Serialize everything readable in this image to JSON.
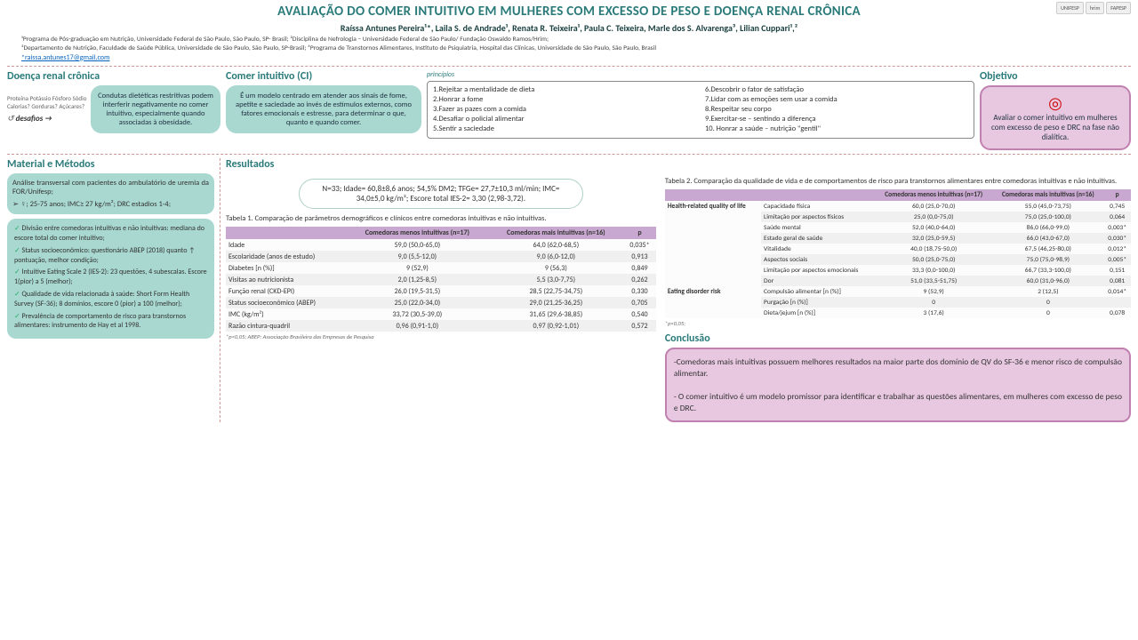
{
  "title": "AVALIAÇÃO DO COMER INTUITIVO EM MULHERES COM EXCESSO DE PESO E DOENÇA RENAL CRÔNICA",
  "authors": "Raíssa Antunes Pereira¹*, Laila S. de Andrade¹, Renata R. Teixeira¹, Paula C. Teixeira, Marle dos S. Alvarenga³, Lilian Cuppari¹,²",
  "affil1": "¹Programa de Pós-graduação em Nutrição, Universidade Federal de São Paulo, São Paulo, SP- Brasil; ²Disciplina de Nefrologia – Universidade Federal de São Paulo/ Fundação Oswaldo Ramos/Hrim;",
  "affil2": "³Departamento de Nutrição, Faculdade de Saúde Pública, Universidade de São Paulo, São Paulo, SP-Brasil; ⁴Programa de Transtornos Alimentares, Instituto de Psiquiatria, Hospital das Clínicas, Universidade de São Paulo, São Paulo, Brasil",
  "email": "*raissa.antunes17@gmail.com",
  "logos": [
    "UNIFESP",
    "hrim",
    "FAPESP"
  ],
  "drc": {
    "title": "Doença renal crônica",
    "words": "Proteína Potássio Fósforo Sódio Calorias? Gorduras? Açúcares?",
    "desafios": "desafios →",
    "box": "Condutas dietéticas restritivas podem interferir negativamente no comer intuitivo, especialmente quando associadas à obesidade."
  },
  "ci": {
    "title": "Comer intuitivo (CI)",
    "box": "É um modelo centrado em atender aos sinais de fome, apetite e saciedade ao invés de estímulos externos, como fatores emocionais e estresse, para determinar o que, quanto e quando comer.",
    "princLabel": "princípios",
    "princ": [
      "1.Rejeitar a mentalidade de dieta",
      "2.Honrar a fome",
      "3.Fazer as pazes com a comida",
      "4.Desafiar o policial alimentar",
      "5.Sentir a saciedade",
      "6.Descobrir o fator de satisfação",
      "7.Lidar com as emoções sem usar a comida",
      "8.Respeitar seu corpo",
      "9.Exercitar-se – sentindo a diferença",
      "10. Honrar a saúde – nutrição \"gentil\""
    ]
  },
  "obj": {
    "title": "Objetivo",
    "box": "Avaliar o comer intuitivo em mulheres com excesso de peso e DRC na fase não dialítica."
  },
  "methods": {
    "title": "Material e Métodos",
    "box1": "Análise transversal com pacientes do ambulatório de uremia da FOR/Unifesp;",
    "box1b": "➢ ♀; 25-75 anos; IMC≥ 27 kg/m²; DRC estadios 1-4;",
    "items": [
      "Divisão entre comedoras intuitivas e não intuitivas: mediana do escore total do comer intuitivo;",
      "Status socioeconômico: questionário ABEP (2018) quanto ↑ pontuação, melhor condição;",
      "Intuitive Eating Scale 2 (IES-2): 23 questões, 4 subescalas. Escore 1(pior) a 5 (melhor);",
      "Qualidade de vida relacionada à saúde: Short Form Health Survey (SF-36); 8 domínios, escore 0 (pior) a 100 (melhor);",
      "Prevalência de comportamento de risco para transtornos alimentares: instrumento de Hay et al 1998."
    ]
  },
  "results": {
    "title": "Resultados",
    "summary": "N=33; Idade= 60,8±8,6 anos; 54,5% DM2; TFGe= 27,7±10,3 ml/min; IMC= 34,0±5,0 kg/m²; Escore total IES-2= 3,30 (2,98-3,72).",
    "tbl1cap": "Tabela 1. Comparação de parâmetros demográficos e clínicos entre comedoras intuitivas e não intuitivas.",
    "cols": [
      "",
      "Comedoras menos intuitivas (n=17)",
      "Comedoras mais intuitivas (n=16)",
      "p"
    ],
    "tbl1": [
      [
        "Idade",
        "59,0 (50,0-65,0)",
        "64,0 (62,0-68,5)",
        "0,035*"
      ],
      [
        "Escolaridade (anos de estudo)",
        "9,0 (5,5-12,0)",
        "9,0 (6,0-12,0)",
        "0,913"
      ],
      [
        "Diabetes [n (%)]",
        "9 (52,9)",
        "9 (56,3)",
        "0,849"
      ],
      [
        "Visitas ao nutricionista",
        "2,0 (1,25-8,5)",
        "5,5 (3,0-7,75)",
        "0,262"
      ],
      [
        "Função renal (CKD-EPI)",
        "26,0 (19,5-31,5)",
        "28,5 (22,75-34,75)",
        "0,330"
      ],
      [
        "Status socioeconômico (ABEP)",
        "25,0 (22,0-34,0)",
        "29,0 (21,25-36,25)",
        "0,705"
      ],
      [
        "IMC (kg/m²)",
        "33,72 (30,5-39,0)",
        "31,65 (29,6-38,85)",
        "0,540"
      ],
      [
        "Razão cintura-quadril",
        "0,96 (0,91-1,0)",
        "0,97 (0,92-1,01)",
        "0,572"
      ]
    ],
    "tbl1foot": "*p<0,05; ABEP: Associação Brasileira das Empresas de Pesquisa",
    "tbl2cap": "Tabela 2. Comparação da qualidade de vida e de comportamentos de risco para transtornos alimentares entre comedoras intuitivas e não intuitivas.",
    "tbl2g1": "Health-related quality of life",
    "tbl2a": [
      [
        "Capacidade física",
        "60,0 (25,0-70,0)",
        "55,0 (45,0-73,75)",
        "0,745"
      ],
      [
        "Limitação por aspectos físicos",
        "25,0 (0,0-75,0)",
        "75,0 (25,0-100,0)",
        "0,064"
      ],
      [
        "Saúde mental",
        "52,0 (40,0-64,0)",
        "86,0 (66,0-99,0)",
        "0,003*"
      ],
      [
        "Estado geral de saúde",
        "32,0 (25,0-59,5)",
        "66,0 (43,0-67,0)",
        "0,030*"
      ],
      [
        "Vitalidade",
        "40,0 (18,75-50,0)",
        "67,5 (46,25-80,0)",
        "0,012*"
      ],
      [
        "Aspectos sociais",
        "50,0 (25,0-75,0)",
        "75,0 (75,0-98,9)",
        "0,005*"
      ],
      [
        "Limitação por aspectos emocionais",
        "33,3 (0,0-100,0)",
        "66,7 (33,3-100,0)",
        "0,151"
      ],
      [
        "Dor",
        "51,0 (33,5-51,75)",
        "60,0 (31,0-96,0)",
        "0,081"
      ]
    ],
    "tbl2g2": "Eating disorder risk",
    "tbl2b": [
      [
        "Compulsão alimentar [n (%)]",
        "9 (52,9)",
        "2 (12,5)",
        "0,014*"
      ],
      [
        "Purgação [n (%)]",
        "0",
        "0",
        ""
      ],
      [
        "Dieta/jejum [n (%)]",
        "3 (17,6)",
        "0",
        "0,078"
      ]
    ],
    "tbl2foot": "*p<0,05;"
  },
  "concl": {
    "title": "Conclusão",
    "text": "-Comedoras mais intuitivas possuem melhores resultados na maior parte dos domínio de QV do SF-36 e menor risco de compulsão alimentar.\n- O comer intuitivo é um modelo promissor para identificar e trabalhar as questões alimentares, em mulheres com excesso de peso e DRC."
  }
}
